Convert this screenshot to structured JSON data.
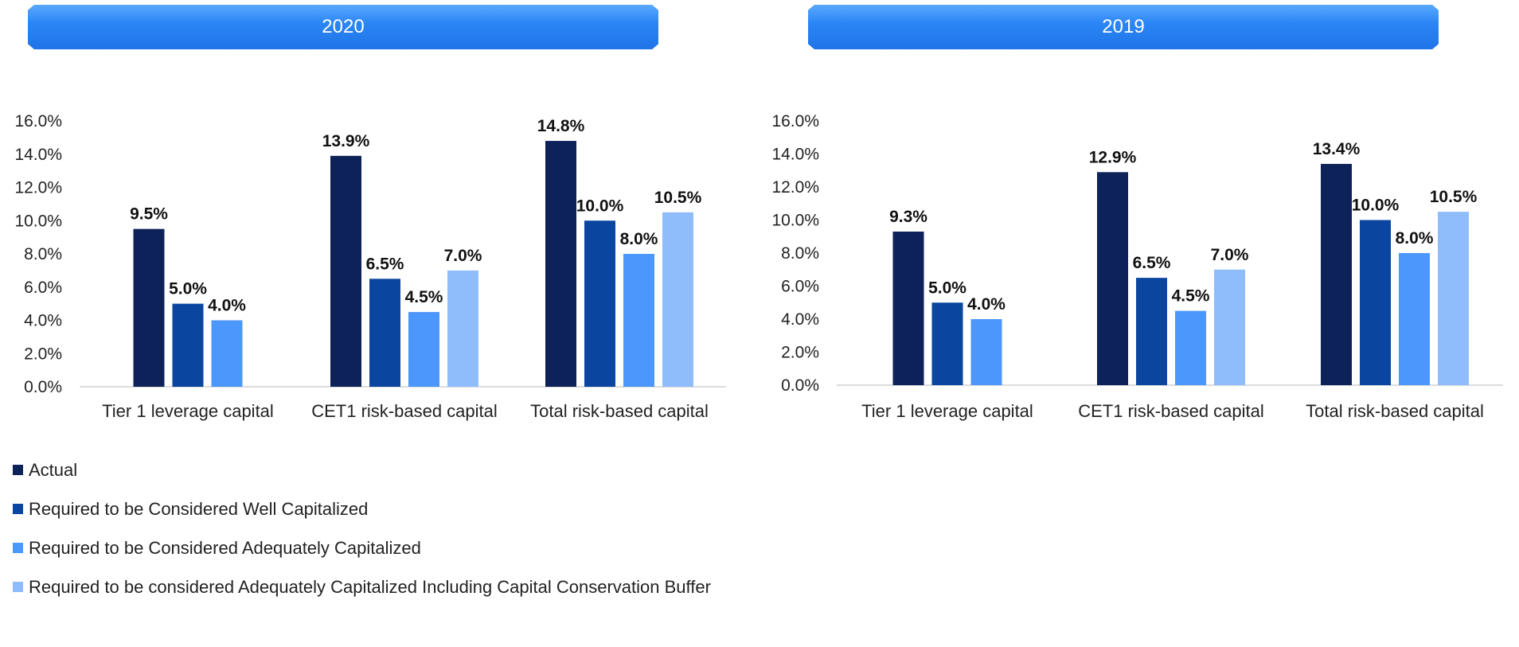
{
  "banners": {
    "left": "2020",
    "right": "2019"
  },
  "legend": [
    {
      "label": "Actual",
      "color": "#0d2259"
    },
    {
      "label": "Required to be Considered Well Capitalized",
      "color": "#0a46a0"
    },
    {
      "label": "Required to be Considered Adequately Capitalized",
      "color": "#4c97fb"
    },
    {
      "label": "Required to be considered Adequately Capitalized Including Capital Conservation Buffer",
      "color": "#8fbcfb"
    }
  ],
  "chart_data": [
    {
      "type": "bar",
      "title": "2020",
      "categories": [
        "Tier 1 leverage capital",
        "CET1 risk-based capital",
        "Total risk-based capital"
      ],
      "yticks": [
        "0.0%",
        "2.0%",
        "4.0%",
        "6.0%",
        "8.0%",
        "10.0%",
        "12.0%",
        "14.0%",
        "16.0%"
      ],
      "ylim": [
        0,
        16
      ],
      "series": [
        {
          "name": "Actual",
          "values": [
            9.5,
            13.9,
            14.8
          ],
          "labels": [
            "9.5%",
            "13.9%",
            "14.8%"
          ]
        },
        {
          "name": "Required to be Considered Well Capitalized",
          "values": [
            5.0,
            6.5,
            10.0
          ],
          "labels": [
            "5.0%",
            "6.5%",
            "10.0%"
          ]
        },
        {
          "name": "Required to be Considered Adequately Capitalized",
          "values": [
            4.0,
            4.5,
            8.0
          ],
          "labels": [
            "4.0%",
            "4.5%",
            "8.0%"
          ]
        },
        {
          "name": "Required to be considered Adequately Capitalized Including Capital Conservation Buffer",
          "values": [
            null,
            7.0,
            10.5
          ],
          "labels": [
            null,
            "7.0%",
            "10.5%"
          ]
        }
      ]
    },
    {
      "type": "bar",
      "title": "2019",
      "categories": [
        "Tier 1 leverage capital",
        "CET1 risk-based capital",
        "Total risk-based capital"
      ],
      "yticks": [
        "0.0%",
        "2.0%",
        "4.0%",
        "6.0%",
        "8.0%",
        "10.0%",
        "12.0%",
        "14.0%",
        "16.0%"
      ],
      "ylim": [
        0,
        16
      ],
      "series": [
        {
          "name": "Actual",
          "values": [
            9.3,
            12.9,
            13.4
          ],
          "labels": [
            "9.3%",
            "12.9%",
            "13.4%"
          ]
        },
        {
          "name": "Required to be Considered Well Capitalized",
          "values": [
            5.0,
            6.5,
            10.0
          ],
          "labels": [
            "5.0%",
            "6.5%",
            "10.0%"
          ]
        },
        {
          "name": "Required to be Considered Adequately Capitalized",
          "values": [
            4.0,
            4.5,
            8.0
          ],
          "labels": [
            "4.0%",
            "4.5%",
            "8.0%"
          ]
        },
        {
          "name": "Required to be considered Adequately Capitalized Including Capital Conservation Buffer",
          "values": [
            null,
            7.0,
            10.5
          ],
          "labels": [
            null,
            "7.0%",
            "10.5%"
          ]
        }
      ]
    }
  ]
}
